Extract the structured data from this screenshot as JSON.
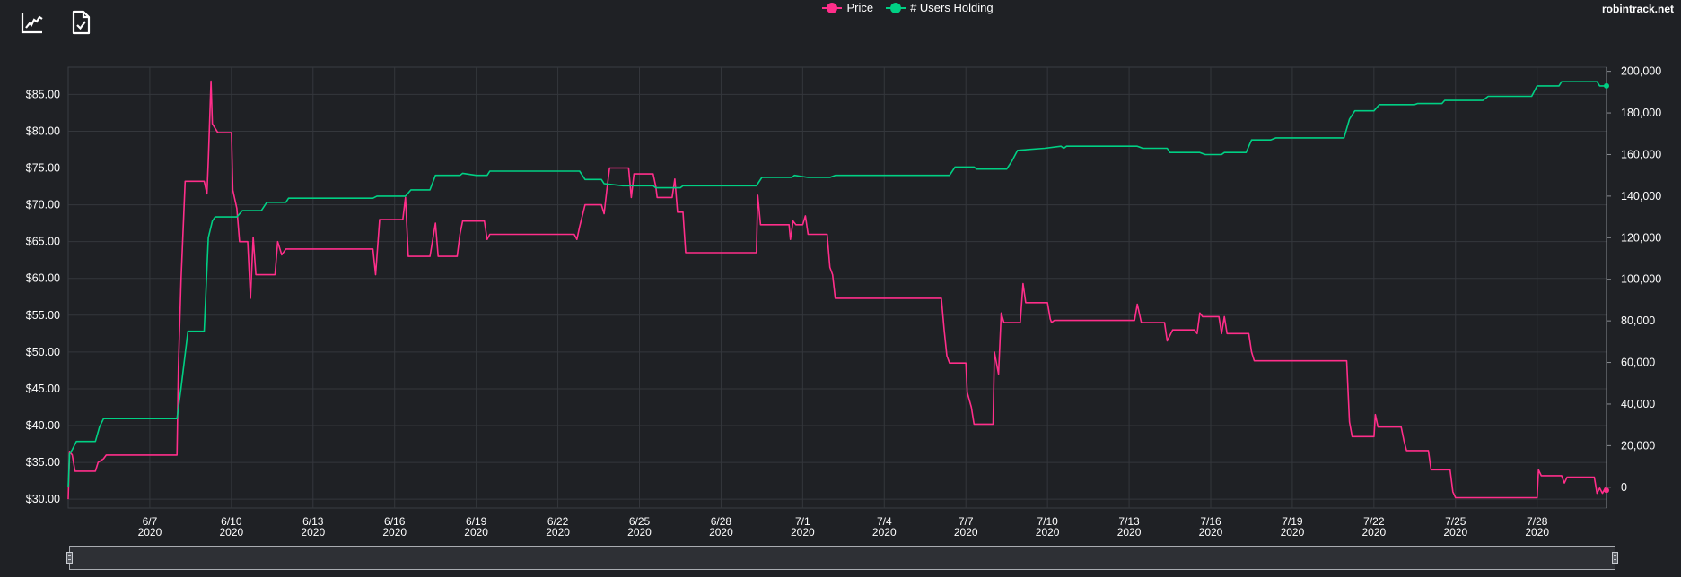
{
  "brand": "robintrack.net",
  "toolbar": [
    {
      "name": "line-chart-icon"
    },
    {
      "name": "file-check-icon"
    }
  ],
  "colors": {
    "background": "#1f2125",
    "price": "#ff2e8a",
    "users": "#00d084",
    "grid": "#3a3d42",
    "text": "#ffffff"
  },
  "chart_data": {
    "type": "line",
    "legend": [
      {
        "label": "Price",
        "color": "#ff2e8a"
      },
      {
        "label": "# Users Holding",
        "color": "#00d084"
      }
    ],
    "x_start": "2020-06-04",
    "xlim": [
      0,
      55.4
    ],
    "x_ticks": [
      {
        "day": 3,
        "line1": "6/7",
        "line2": "2020"
      },
      {
        "day": 6,
        "line1": "6/10",
        "line2": "2020"
      },
      {
        "day": 9,
        "line1": "6/13",
        "line2": "2020"
      },
      {
        "day": 12,
        "line1": "6/16",
        "line2": "2020"
      },
      {
        "day": 15,
        "line1": "6/19",
        "line2": "2020"
      },
      {
        "day": 18,
        "line1": "6/22",
        "line2": "2020"
      },
      {
        "day": 21,
        "line1": "6/25",
        "line2": "2020"
      },
      {
        "day": 24,
        "line1": "6/28",
        "line2": "2020"
      },
      {
        "day": 27,
        "line1": "7/1",
        "line2": "2020"
      },
      {
        "day": 30,
        "line1": "7/4",
        "line2": "2020"
      },
      {
        "day": 33,
        "line1": "7/7",
        "line2": "2020"
      },
      {
        "day": 36,
        "line1": "7/10",
        "line2": "2020"
      },
      {
        "day": 39,
        "line1": "7/13",
        "line2": "2020"
      },
      {
        "day": 42,
        "line1": "7/16",
        "line2": "2020"
      },
      {
        "day": 45,
        "line1": "7/19",
        "line2": "2020"
      },
      {
        "day": 48,
        "line1": "7/22",
        "line2": "2020"
      },
      {
        "day": 51,
        "line1": "7/25",
        "line2": "2020"
      },
      {
        "day": 54,
        "line1": "7/28",
        "line2": "2020"
      }
    ],
    "y_left": {
      "ylim": [
        28.8,
        88.7
      ],
      "ticks": [
        30,
        35,
        40,
        45,
        50,
        55,
        60,
        65,
        70,
        75,
        80,
        85
      ],
      "tick_labels": [
        "$30.00",
        "$35.00",
        "$40.00",
        "$45.00",
        "$50.00",
        "$55.00",
        "$60.00",
        "$65.00",
        "$70.00",
        "$75.00",
        "$80.00",
        "$85.00"
      ]
    },
    "y_right": {
      "ylim": [
        -10000,
        202000
      ],
      "ticks": [
        0,
        20000,
        40000,
        60000,
        80000,
        100000,
        120000,
        140000,
        160000,
        180000,
        200000
      ],
      "tick_labels": [
        "0",
        "20,000",
        "40,000",
        "60,000",
        "80,000",
        "100,000",
        "120,000",
        "140,000",
        "160,000",
        "180,000",
        "200,000"
      ]
    },
    "grid": true,
    "series": [
      {
        "name": "Price",
        "axis": "left",
        "color": "#ff2e8a",
        "points": [
          [
            0,
            30
          ],
          [
            0.05,
            36.5
          ],
          [
            0.15,
            36
          ],
          [
            0.25,
            33.8
          ],
          [
            1.0,
            33.8
          ],
          [
            1.1,
            35
          ],
          [
            1.3,
            35.5
          ],
          [
            1.4,
            36
          ],
          [
            4.0,
            36
          ],
          [
            4.05,
            48
          ],
          [
            4.15,
            60
          ],
          [
            4.3,
            73.2
          ],
          [
            5.0,
            73.2
          ],
          [
            5.1,
            71.5
          ],
          [
            5.15,
            76
          ],
          [
            5.25,
            86.8
          ],
          [
            5.3,
            81
          ],
          [
            5.5,
            79.8
          ],
          [
            6.0,
            79.8
          ],
          [
            6.05,
            72
          ],
          [
            6.2,
            69.5
          ],
          [
            6.3,
            65
          ],
          [
            6.6,
            65
          ],
          [
            6.7,
            57.3
          ],
          [
            6.8,
            65.6
          ],
          [
            6.9,
            60.5
          ],
          [
            7.6,
            60.5
          ],
          [
            7.7,
            65
          ],
          [
            7.85,
            63.2
          ],
          [
            8.0,
            64
          ],
          [
            11.2,
            64
          ],
          [
            11.3,
            60.5
          ],
          [
            11.45,
            68
          ],
          [
            12.3,
            68
          ],
          [
            12.4,
            71
          ],
          [
            12.5,
            63
          ],
          [
            13.3,
            63
          ],
          [
            13.5,
            67.5
          ],
          [
            13.6,
            63
          ],
          [
            14.3,
            63
          ],
          [
            14.4,
            66
          ],
          [
            14.5,
            67.8
          ],
          [
            15.3,
            67.8
          ],
          [
            15.4,
            65.3
          ],
          [
            15.5,
            66
          ],
          [
            18.6,
            66
          ],
          [
            18.7,
            65.3
          ],
          [
            18.8,
            67
          ],
          [
            19.0,
            70
          ],
          [
            19.6,
            70
          ],
          [
            19.7,
            68.8
          ],
          [
            19.8,
            72
          ],
          [
            19.9,
            75
          ],
          [
            20.6,
            75
          ],
          [
            20.7,
            71
          ],
          [
            20.8,
            74.2
          ],
          [
            21.5,
            74.2
          ],
          [
            21.6,
            72.5
          ],
          [
            21.65,
            71
          ],
          [
            22.2,
            71
          ],
          [
            22.3,
            73.5
          ],
          [
            22.4,
            69
          ],
          [
            22.6,
            69
          ],
          [
            22.7,
            63.5
          ],
          [
            25.3,
            63.5
          ],
          [
            25.35,
            71.3
          ],
          [
            25.45,
            67.3
          ],
          [
            26.5,
            67.3
          ],
          [
            26.55,
            65.3
          ],
          [
            26.65,
            67.8
          ],
          [
            26.75,
            67.3
          ],
          [
            27.0,
            67.3
          ],
          [
            27.1,
            68.5
          ],
          [
            27.2,
            66
          ],
          [
            27.9,
            66
          ],
          [
            28.0,
            61.5
          ],
          [
            28.1,
            60.5
          ],
          [
            28.2,
            57.3
          ],
          [
            32.1,
            57.3
          ],
          [
            32.2,
            53
          ],
          [
            32.3,
            49.5
          ],
          [
            32.4,
            48.5
          ],
          [
            33.0,
            48.5
          ],
          [
            33.05,
            44.5
          ],
          [
            33.2,
            42.5
          ],
          [
            33.3,
            40.2
          ],
          [
            34.0,
            40.2
          ],
          [
            34.05,
            50
          ],
          [
            34.2,
            47
          ],
          [
            34.3,
            55.3
          ],
          [
            34.4,
            54
          ],
          [
            35.0,
            54
          ],
          [
            35.1,
            59.3
          ],
          [
            35.2,
            56.7
          ],
          [
            36.0,
            56.7
          ],
          [
            36.1,
            54.5
          ],
          [
            36.15,
            54
          ],
          [
            36.25,
            54.3
          ],
          [
            39.2,
            54.3
          ],
          [
            39.3,
            56.5
          ],
          [
            39.45,
            54
          ],
          [
            40.3,
            54
          ],
          [
            40.4,
            51.5
          ],
          [
            40.6,
            53
          ],
          [
            41.4,
            53
          ],
          [
            41.5,
            52.5
          ],
          [
            41.6,
            55.3
          ],
          [
            41.7,
            54.8
          ],
          [
            42.3,
            54.8
          ],
          [
            42.4,
            52.5
          ],
          [
            42.5,
            54.8
          ],
          [
            42.6,
            52.5
          ],
          [
            43.4,
            52.5
          ],
          [
            43.5,
            50
          ],
          [
            43.6,
            48.8
          ],
          [
            47.0,
            48.8
          ],
          [
            47.1,
            40.5
          ],
          [
            47.2,
            38.5
          ],
          [
            48.0,
            38.5
          ],
          [
            48.05,
            41.5
          ],
          [
            48.15,
            39.8
          ],
          [
            49.0,
            39.8
          ],
          [
            49.1,
            38
          ],
          [
            49.2,
            36.6
          ],
          [
            50.0,
            36.6
          ],
          [
            50.1,
            34
          ],
          [
            50.8,
            34
          ],
          [
            50.9,
            31
          ],
          [
            51.0,
            30.2
          ],
          [
            54.0,
            30.2
          ],
          [
            54.05,
            34
          ],
          [
            54.15,
            33.2
          ],
          [
            54.9,
            33.2
          ],
          [
            55.0,
            32.2
          ],
          [
            55.1,
            33
          ],
          [
            56.1,
            33
          ],
          [
            56.2,
            30.8
          ],
          [
            56.3,
            31.5
          ],
          [
            56.4,
            30.8
          ],
          [
            56.5,
            31.5
          ],
          [
            56.55,
            31.2
          ]
        ]
      },
      {
        "name": "# Users Holding",
        "axis": "right",
        "color": "#00d084",
        "points": [
          [
            0,
            0
          ],
          [
            0.05,
            16000
          ],
          [
            0.15,
            18000
          ],
          [
            0.3,
            22000
          ],
          [
            1.0,
            22000
          ],
          [
            1.15,
            29000
          ],
          [
            1.3,
            33000
          ],
          [
            4.0,
            33000
          ],
          [
            4.15,
            48000
          ],
          [
            4.4,
            75000
          ],
          [
            5.0,
            75000
          ],
          [
            5.15,
            120000
          ],
          [
            5.3,
            128000
          ],
          [
            5.4,
            130000
          ],
          [
            6.2,
            130000
          ],
          [
            6.4,
            133000
          ],
          [
            7.1,
            133000
          ],
          [
            7.3,
            137000
          ],
          [
            8.0,
            137000
          ],
          [
            8.1,
            139000
          ],
          [
            11.2,
            139000
          ],
          [
            11.35,
            140000
          ],
          [
            12.4,
            140000
          ],
          [
            12.6,
            143000
          ],
          [
            13.3,
            143000
          ],
          [
            13.5,
            150000
          ],
          [
            14.4,
            150000
          ],
          [
            14.5,
            151000
          ],
          [
            15.0,
            150000
          ],
          [
            15.4,
            150000
          ],
          [
            15.5,
            152000
          ],
          [
            18.8,
            152000
          ],
          [
            19.0,
            148000
          ],
          [
            19.6,
            148000
          ],
          [
            19.7,
            146000
          ],
          [
            20.4,
            145000
          ],
          [
            21.5,
            145000
          ],
          [
            21.6,
            144000
          ],
          [
            22.5,
            144000
          ],
          [
            22.6,
            145000
          ],
          [
            25.3,
            145000
          ],
          [
            25.5,
            149000
          ],
          [
            26.6,
            149000
          ],
          [
            26.7,
            150000
          ],
          [
            27.2,
            149000
          ],
          [
            28.0,
            149000
          ],
          [
            28.2,
            150000
          ],
          [
            32.4,
            150000
          ],
          [
            32.6,
            154000
          ],
          [
            33.3,
            154000
          ],
          [
            33.4,
            153000
          ],
          [
            34.5,
            153000
          ],
          [
            34.7,
            157000
          ],
          [
            34.9,
            162000
          ],
          [
            35.9,
            163000
          ],
          [
            36.5,
            164000
          ],
          [
            36.6,
            163000
          ],
          [
            36.7,
            164000
          ],
          [
            39.3,
            164000
          ],
          [
            39.5,
            163000
          ],
          [
            40.4,
            163000
          ],
          [
            40.5,
            161000
          ],
          [
            41.6,
            161000
          ],
          [
            41.8,
            160000
          ],
          [
            42.4,
            160000
          ],
          [
            42.5,
            161000
          ],
          [
            43.3,
            161000
          ],
          [
            43.5,
            167000
          ],
          [
            44.2,
            167000
          ],
          [
            44.4,
            168000
          ],
          [
            46.9,
            168000
          ],
          [
            47.1,
            177000
          ],
          [
            47.3,
            181000
          ],
          [
            47.6,
            181000
          ],
          [
            48.0,
            181000
          ],
          [
            48.2,
            184000
          ],
          [
            49.5,
            184000
          ],
          [
            49.6,
            184500
          ],
          [
            50.5,
            184500
          ],
          [
            50.6,
            186000
          ],
          [
            52.0,
            186000
          ],
          [
            52.2,
            188000
          ],
          [
            53.8,
            188000
          ],
          [
            54.0,
            193000
          ],
          [
            54.8,
            193000
          ],
          [
            54.9,
            195000
          ],
          [
            56.2,
            195000
          ],
          [
            56.3,
            193000
          ],
          [
            56.55,
            193000
          ]
        ]
      }
    ]
  }
}
